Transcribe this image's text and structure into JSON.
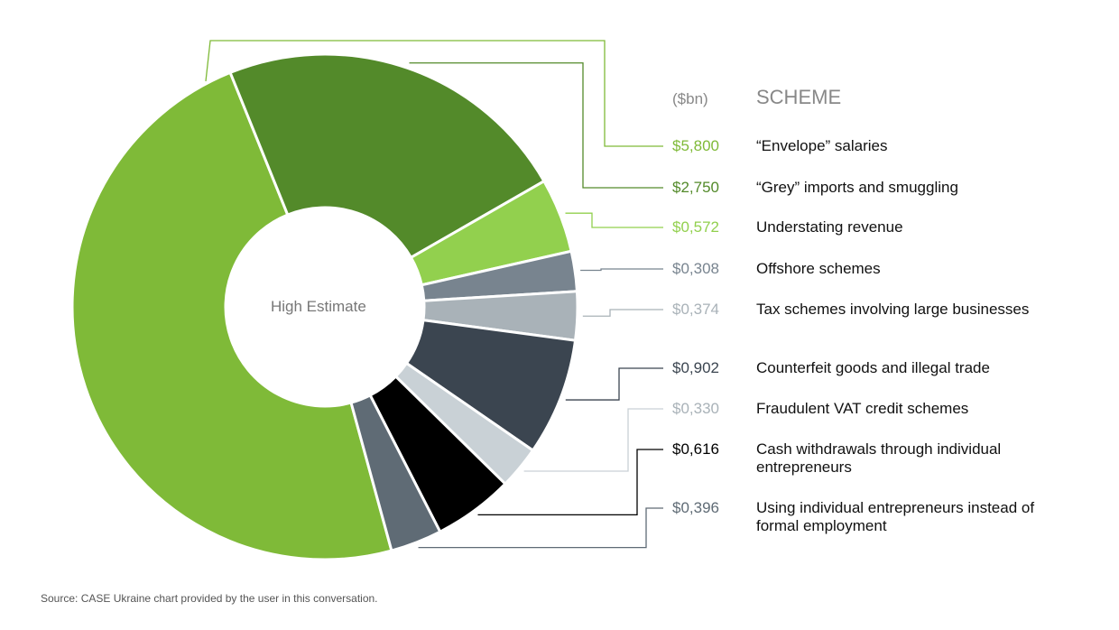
{
  "chart_data": {
    "type": "donut",
    "center_label": "High Estimate",
    "value_header": "($bn)",
    "category_header": "SCHEME",
    "source": "Source: CASE Ukraine chart provided by the user in this conversation.",
    "categories": [
      "“Envelope” salaries",
      "“Grey” imports and smuggling",
      "Understating revenue",
      "Offshore schemes",
      "Tax schemes involving large businesses",
      "Counterfeit goods and illegal trade",
      "Fraudulent VAT credit schemes",
      "Cash withdrawals through individual entrepreneurs",
      "Using individual entrepreneurs instead of formal employment"
    ],
    "values": [
      5.8,
      2.75,
      0.572,
      0.308,
      0.374,
      0.902,
      0.33,
      0.616,
      0.396
    ],
    "value_labels": [
      "$5,800",
      "$2,750",
      "$0,572",
      "$0,308",
      "$0,374",
      "$0,902",
      "$0,330",
      "$0,616",
      "$0,396"
    ],
    "colors": [
      "#7fba38",
      "#538a2a",
      "#92d04e",
      "#78848f",
      "#a9b2b8",
      "#3b4550",
      "#c9d1d6",
      "#000000",
      "#5f6b75"
    ]
  }
}
